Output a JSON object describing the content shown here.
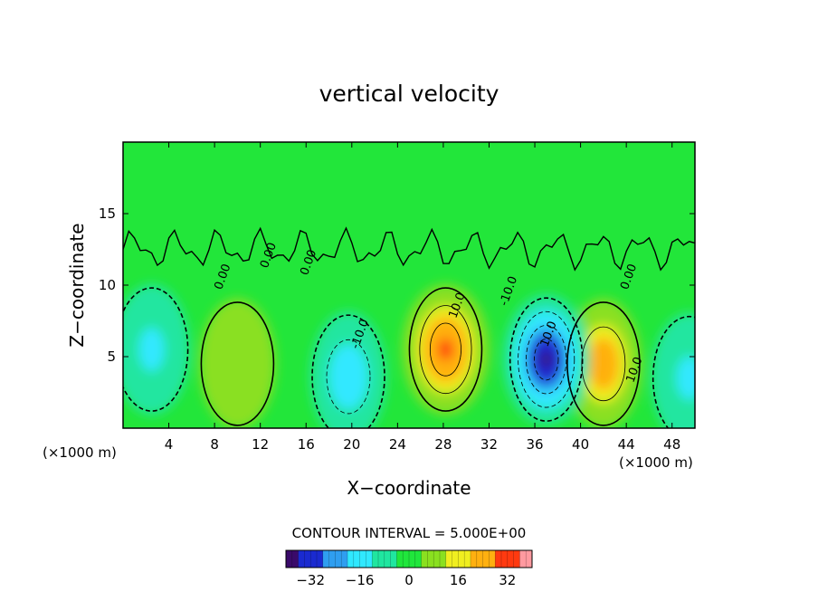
{
  "chart_data": {
    "type": "heatmap",
    "title": "vertical velocity",
    "xlabel": "X−coordinate",
    "ylabel": "Z−coordinate",
    "x_unit_label": "(×1000 m)",
    "xlim": [
      0,
      50
    ],
    "ylim": [
      0,
      20
    ],
    "x_ticks": [
      4,
      8,
      12,
      16,
      20,
      24,
      28,
      32,
      36,
      40,
      44,
      48
    ],
    "y_ticks": [
      5,
      10,
      15
    ],
    "contour_interval_label": "CONTOUR INTERVAL = 5.000E+00",
    "contour_labels": [
      "0.00",
      "0.00",
      "0.00",
      "0.00",
      "10.0",
      "-10.0",
      "10.0",
      "-10.0",
      "10.0"
    ],
    "colorbar": {
      "range": [
        -40,
        40
      ],
      "ticks": [
        -32,
        -16,
        0,
        16,
        32
      ],
      "tick_labels": [
        "−32",
        "−16",
        "0",
        "16",
        "32"
      ],
      "colors": [
        "#3a0a6a",
        "#1a2ad0",
        "#2f9ef0",
        "#30e8ff",
        "#20e6a0",
        "#20e63c",
        "#8ae020",
        "#f0ee20",
        "#ffb010",
        "#ff3a10",
        "#ff9aa0"
      ]
    },
    "features": [
      {
        "x": 10.0,
        "z": 4.5,
        "w": 6
      },
      {
        "x": 28.2,
        "z": 5.5,
        "w": 30
      },
      {
        "x": 42.0,
        "z": 4.5,
        "w": 22
      },
      {
        "x": 37.0,
        "z": 4.8,
        "w": -38
      },
      {
        "x": 19.7,
        "z": 3.6,
        "w": -18
      },
      {
        "x": 2.5,
        "z": 5.5,
        "w": -12
      },
      {
        "x": 49.5,
        "z": 3.5,
        "w": -14
      }
    ]
  }
}
